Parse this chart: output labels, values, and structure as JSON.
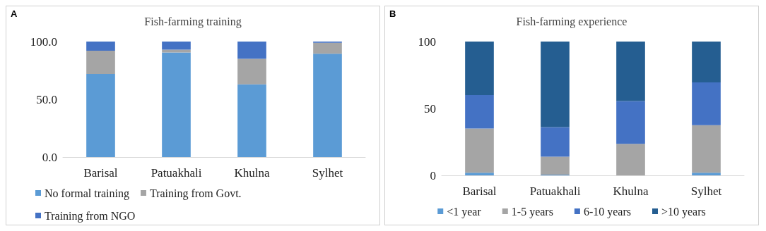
{
  "chart_data": [
    {
      "type": "bar",
      "title": "Fish-farming training",
      "annotations": [
        "A"
      ],
      "stacked": true,
      "categories": [
        "Barisal",
        "Patuakhali",
        "Khulna",
        "Sylhet"
      ],
      "series": [
        {
          "name": "No formal training",
          "color": "#5b9bd5",
          "values": [
            72,
            90.5,
            63,
            89.5
          ]
        },
        {
          "name": "Training from Govt.",
          "color": "#a5a5a5",
          "values": [
            20,
            2.5,
            22,
            9.5
          ]
        },
        {
          "name": "Training from NGO",
          "color": "#4472c4",
          "values": [
            8,
            7,
            15,
            1
          ]
        }
      ],
      "ylim": [
        0,
        100
      ],
      "yticks": [
        {
          "value": 0,
          "label": "0.0"
        },
        {
          "value": 50,
          "label": "50.0"
        },
        {
          "value": 100,
          "label": "100.0"
        }
      ],
      "grid": false,
      "legend": "bottom"
    },
    {
      "type": "bar",
      "title": "Fish-farming experience",
      "annotations": [
        "B"
      ],
      "stacked": true,
      "categories": [
        "Barisal",
        "Patuakhali",
        "Khulna",
        "Sylhet"
      ],
      "series": [
        {
          "name": "<1 year",
          "color": "#5b9bd5",
          "values": [
            2,
            0.5,
            0,
            2
          ]
        },
        {
          "name": "1-5 years",
          "color": "#a5a5a5",
          "values": [
            33,
            13.5,
            23.5,
            35.5
          ]
        },
        {
          "name": "6-10 years",
          "color": "#4472c4",
          "values": [
            25,
            22,
            32,
            32
          ]
        },
        {
          "name": ">10 years",
          "color": "#255e91",
          "values": [
            40,
            64,
            44.5,
            30.5
          ]
        }
      ],
      "ylim": [
        0,
        100
      ],
      "yticks": [
        0,
        50,
        100
      ],
      "grid": false,
      "legend": "bottom"
    }
  ]
}
